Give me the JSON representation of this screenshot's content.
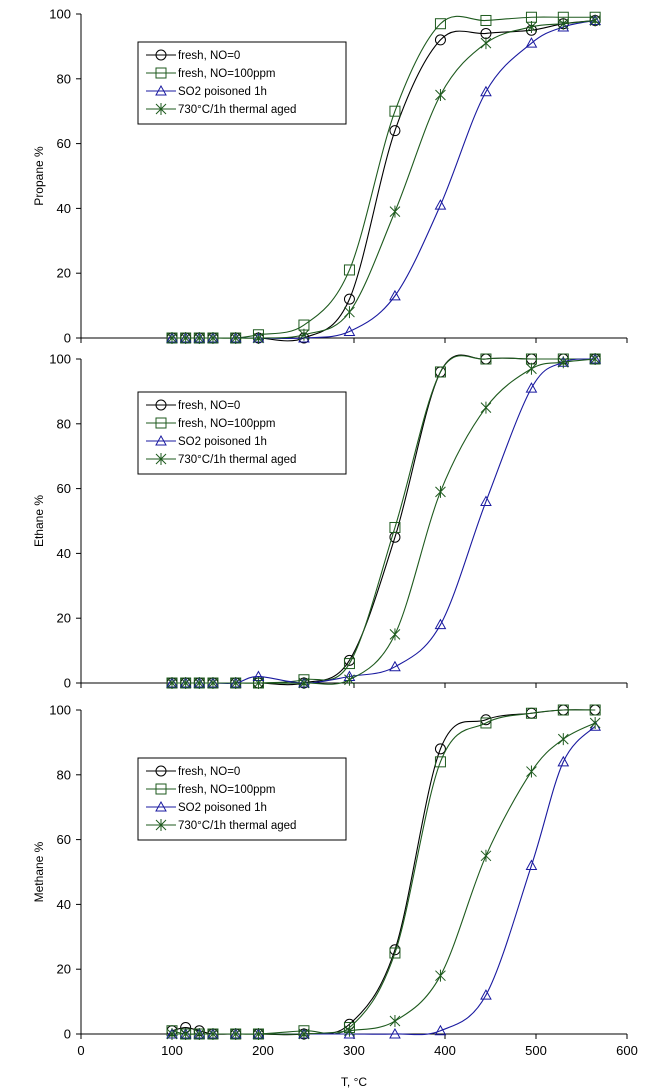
{
  "chart_data": [
    {
      "type": "line",
      "title": "",
      "xlabel": "",
      "ylabel": "Propane %",
      "xlim": [
        0,
        600
      ],
      "ylim": [
        0,
        100
      ],
      "yticks": [
        "0",
        "20",
        "40",
        "60",
        "80",
        "100"
      ],
      "grid": false,
      "legend": "top-left",
      "series": [
        {
          "name": "fresh, NO=0",
          "marker": "circle",
          "color": "#000000",
          "x": [
            100,
            115,
            130,
            145,
            170,
            195,
            245,
            295,
            345,
            395,
            445,
            495,
            530,
            565
          ],
          "y": [
            0,
            0,
            0,
            0,
            0,
            0,
            0,
            12,
            64,
            92,
            94,
            95,
            97,
            98
          ]
        },
        {
          "name": "fresh, NO=100ppm",
          "marker": "square",
          "color": "#1e5a1e",
          "x": [
            100,
            115,
            130,
            145,
            170,
            195,
            245,
            295,
            345,
            395,
            445,
            495,
            530,
            565
          ],
          "y": [
            0,
            0,
            0,
            0,
            0,
            1,
            4,
            21,
            70,
            97,
            98,
            99,
            99,
            99
          ]
        },
        {
          "name": "SO2 poisoned 1h",
          "marker": "triangle",
          "color": "#1a1aa0",
          "x": [
            100,
            115,
            130,
            145,
            170,
            195,
            245,
            295,
            345,
            395,
            445,
            495,
            530,
            565
          ],
          "y": [
            0,
            0,
            0,
            0,
            0,
            0,
            0,
            2,
            13,
            41,
            76,
            91,
            96,
            98
          ]
        },
        {
          "name": "730°C/1h thermal aged",
          "marker": "star",
          "color": "#1e5a1e",
          "x": [
            100,
            115,
            130,
            145,
            170,
            195,
            245,
            295,
            345,
            395,
            445,
            495,
            530,
            565
          ],
          "y": [
            0,
            0,
            0,
            0,
            0,
            0,
            1,
            8,
            39,
            75,
            91,
            96,
            97,
            98
          ]
        }
      ]
    },
    {
      "type": "line",
      "title": "",
      "xlabel": "",
      "ylabel": "Ethane %",
      "xlim": [
        0,
        600
      ],
      "ylim": [
        0,
        100
      ],
      "yticks": [
        "0",
        "20",
        "40",
        "60",
        "80",
        "100"
      ],
      "grid": false,
      "legend": "top-left",
      "series": [
        {
          "name": "fresh, NO=0",
          "marker": "circle",
          "color": "#000000",
          "x": [
            100,
            115,
            130,
            145,
            170,
            195,
            245,
            295,
            345,
            395,
            445,
            495,
            530,
            565
          ],
          "y": [
            0,
            0,
            0,
            0,
            0,
            0,
            0,
            7,
            45,
            96,
            100,
            100,
            100,
            100
          ]
        },
        {
          "name": "fresh, NO=100ppm",
          "marker": "square",
          "color": "#1e5a1e",
          "x": [
            100,
            115,
            130,
            145,
            170,
            195,
            245,
            295,
            345,
            395,
            445,
            495,
            530,
            565
          ],
          "y": [
            0,
            0,
            0,
            0,
            0,
            0,
            1,
            6,
            48,
            96,
            100,
            100,
            100,
            100
          ]
        },
        {
          "name": "SO2 poisoned 1h",
          "marker": "triangle",
          "color": "#1a1aa0",
          "x": [
            100,
            115,
            130,
            145,
            170,
            195,
            245,
            295,
            345,
            395,
            445,
            495,
            530,
            565
          ],
          "y": [
            0,
            0,
            0,
            0,
            0,
            2,
            0,
            2,
            5,
            18,
            56,
            91,
            99,
            100
          ]
        },
        {
          "name": "730°C/1h thermal aged",
          "marker": "star",
          "color": "#1e5a1e",
          "x": [
            100,
            115,
            130,
            145,
            170,
            195,
            245,
            295,
            345,
            395,
            445,
            495,
            530,
            565
          ],
          "y": [
            0,
            0,
            0,
            0,
            0,
            0,
            0,
            1,
            15,
            59,
            85,
            97,
            99,
            100
          ]
        }
      ]
    },
    {
      "type": "line",
      "title": "",
      "xlabel": "T, °C",
      "ylabel": "Methane %",
      "xlim": [
        0,
        600
      ],
      "ylim": [
        0,
        100
      ],
      "xticks": [
        "0",
        "100",
        "200",
        "300",
        "400",
        "500",
        "600"
      ],
      "yticks": [
        "0",
        "20",
        "40",
        "60",
        "80",
        "100"
      ],
      "grid": false,
      "legend": "middle-left",
      "series": [
        {
          "name": "fresh, NO=0",
          "marker": "circle",
          "color": "#000000",
          "x": [
            100,
            115,
            130,
            145,
            170,
            195,
            245,
            295,
            345,
            395,
            445,
            495,
            530,
            565
          ],
          "y": [
            1,
            2,
            1,
            0,
            0,
            0,
            0,
            3,
            26,
            88,
            97,
            99,
            100,
            100
          ]
        },
        {
          "name": "fresh, NO=100ppm",
          "marker": "square",
          "color": "#1e5a1e",
          "x": [
            100,
            115,
            130,
            145,
            170,
            195,
            245,
            295,
            345,
            395,
            445,
            495,
            530,
            565
          ],
          "y": [
            1,
            0,
            0,
            0,
            0,
            0,
            1,
            2,
            25,
            84,
            96,
            99,
            100,
            100
          ]
        },
        {
          "name": "SO2 poisoned 1h",
          "marker": "triangle",
          "color": "#1a1aa0",
          "x": [
            100,
            115,
            130,
            145,
            170,
            195,
            245,
            295,
            345,
            395,
            445,
            495,
            530,
            565
          ],
          "y": [
            0,
            0,
            0,
            0,
            0,
            0,
            0,
            0,
            0,
            1,
            12,
            52,
            84,
            95
          ]
        },
        {
          "name": "730°C/1h thermal aged",
          "marker": "star",
          "color": "#1e5a1e",
          "x": [
            100,
            115,
            130,
            145,
            170,
            195,
            245,
            295,
            345,
            395,
            445,
            495,
            530,
            565
          ],
          "y": [
            0,
            0,
            0,
            0,
            0,
            0,
            0,
            1,
            4,
            18,
            55,
            81,
            91,
            96
          ]
        }
      ]
    }
  ]
}
